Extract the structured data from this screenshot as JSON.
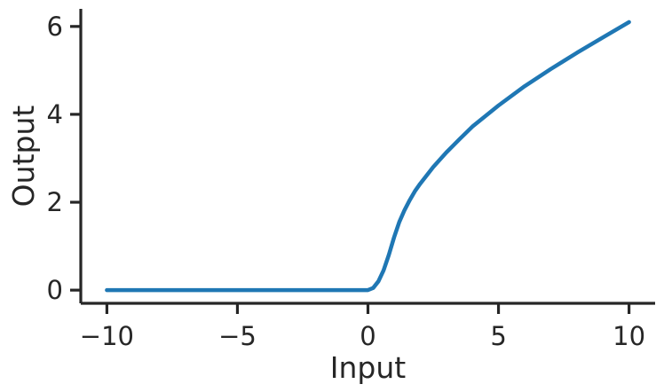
{
  "chart_data": {
    "type": "line",
    "title": "",
    "xlabel": "Input",
    "ylabel": "Output",
    "xlim": [
      -11,
      11
    ],
    "ylim": [
      -0.3,
      6.4
    ],
    "x_ticks": [
      -10,
      -5,
      0,
      5,
      10
    ],
    "x_tick_labels": [
      "−10",
      "−5",
      "0",
      "5",
      "10"
    ],
    "y_ticks": [
      0,
      2,
      4,
      6
    ],
    "y_tick_labels": [
      "0",
      "2",
      "4",
      "6"
    ],
    "grid": false,
    "legend": "none",
    "series": [
      {
        "color": "#1f77b4",
        "x": [
          -10,
          -8,
          -6,
          -4,
          -2,
          0,
          0.2,
          0.4,
          0.6,
          0.8,
          1.0,
          1.2,
          1.4,
          1.6,
          1.8,
          2.0,
          2.5,
          3,
          3.5,
          4,
          5,
          6,
          7,
          8,
          9,
          10
        ],
        "y": [
          0,
          0,
          0,
          0,
          0,
          0,
          0.05,
          0.2,
          0.45,
          0.8,
          1.2,
          1.55,
          1.82,
          2.05,
          2.25,
          2.42,
          2.8,
          3.13,
          3.43,
          3.72,
          4.2,
          4.64,
          5.03,
          5.4,
          5.75,
          6.1
        ]
      }
    ]
  }
}
